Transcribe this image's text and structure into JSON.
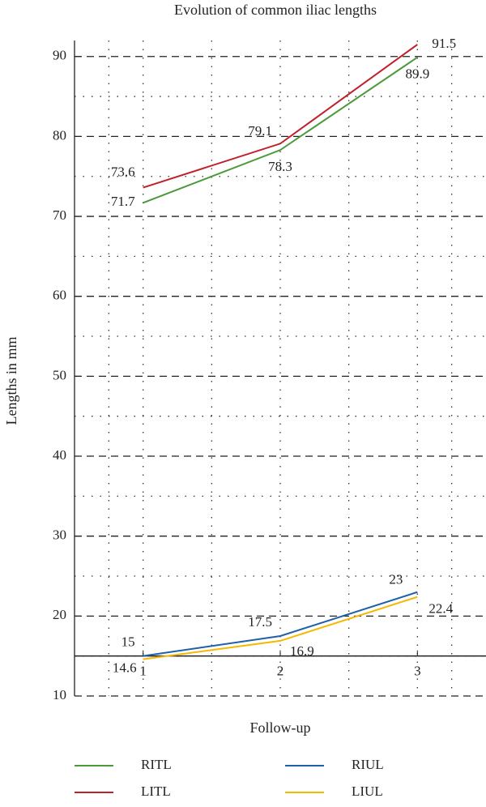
{
  "chart_data": {
    "type": "line",
    "title": "Evolution of common iliac lengths",
    "x_label": "Follow-up",
    "y_label": "Lengths in mm",
    "x": [
      1,
      2,
      3
    ],
    "xlim": [
      0.5,
      3.5
    ],
    "xticks": [
      1,
      2,
      3
    ],
    "ylim": [
      10,
      92
    ],
    "yticks": [
      10,
      20,
      30,
      40,
      50,
      60,
      70,
      80,
      90
    ],
    "grid": true,
    "series": [
      {
        "name": "RITL",
        "color": "#4a9a3a",
        "values": [
          71.7,
          78.3,
          89.9
        ]
      },
      {
        "name": "LITL",
        "color": "#c0202a",
        "values": [
          73.6,
          79.1,
          91.5
        ]
      },
      {
        "name": "RIUL",
        "color": "#2060a8",
        "values": [
          15,
          17.5,
          23
        ]
      },
      {
        "name": "LIUL",
        "color": "#f5b800",
        "values": [
          14.6,
          16.9,
          22.4
        ]
      }
    ]
  }
}
